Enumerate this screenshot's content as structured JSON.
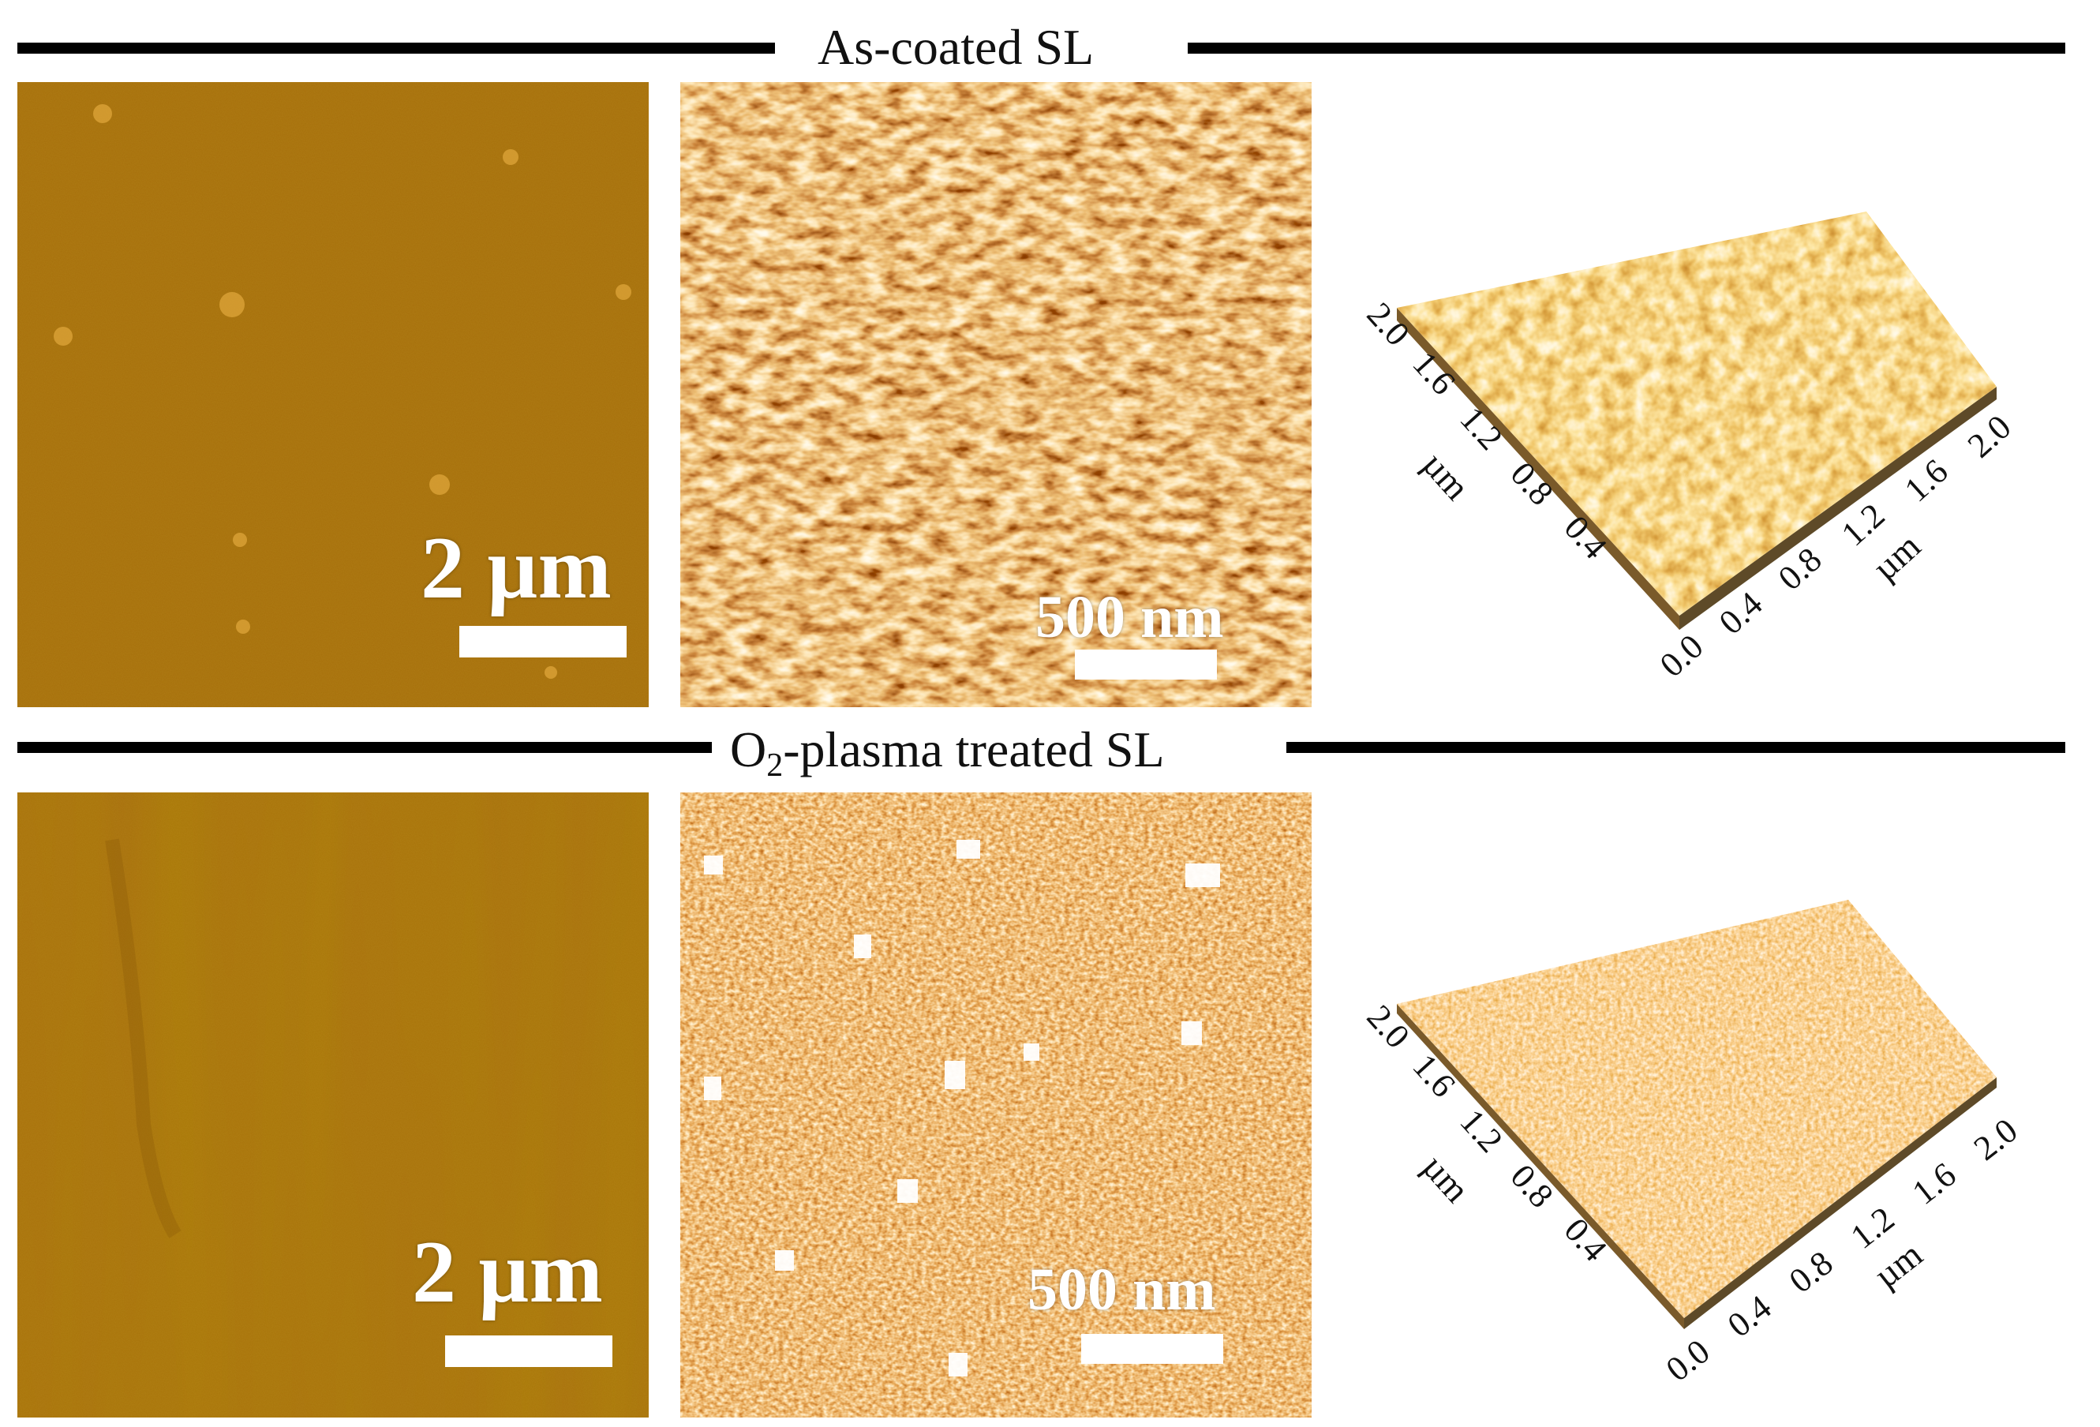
{
  "figure": {
    "rows": [
      {
        "title": "As-coated SL",
        "title_main": "As-coated SL",
        "title_sub": "",
        "title_rest": "",
        "panels": [
          {
            "kind": "afm-topography",
            "scale_label": "2 µm",
            "colormap": "amber-brown"
          },
          {
            "kind": "afm-topography-zoom",
            "scale_label": "500 nm",
            "colormap": "orange-hot"
          },
          {
            "kind": "afm-3d-surface",
            "x_ticks": [
              "0.0",
              "0.4",
              "0.8",
              "1.2",
              "1.6",
              "2.0"
            ],
            "y_ticks": [
              "0.4",
              "0.8",
              "1.2",
              "1.6",
              "2.0"
            ],
            "x_unit": "µm",
            "y_unit": "µm"
          }
        ]
      },
      {
        "title": "O2-plasma treated SL",
        "title_main": "O",
        "title_sub": "2",
        "title_rest": "-plasma treated SL",
        "panels": [
          {
            "kind": "afm-topography",
            "scale_label": "2 µm",
            "colormap": "amber-brown"
          },
          {
            "kind": "afm-topography-zoom",
            "scale_label": "500 nm",
            "colormap": "orange-hot"
          },
          {
            "kind": "afm-3d-surface",
            "x_ticks": [
              "0.0",
              "0.4",
              "0.8",
              "1.2",
              "1.6",
              "2.0"
            ],
            "y_ticks": [
              "0.4",
              "0.8",
              "1.2",
              "1.6",
              "2.0"
            ],
            "x_unit": "µm",
            "y_unit": "µm"
          }
        ]
      }
    ]
  },
  "colors": {
    "amber_base": "#a66f08",
    "hot_dark": "#4a1300",
    "hot_mid": "#c2651c",
    "hot_light": "#fff1c8",
    "rule": "#000000"
  }
}
